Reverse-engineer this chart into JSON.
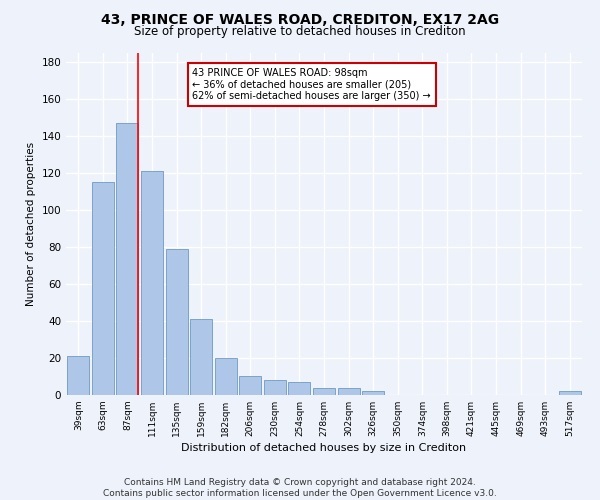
{
  "title": "43, PRINCE OF WALES ROAD, CREDITON, EX17 2AG",
  "subtitle": "Size of property relative to detached houses in Crediton",
  "xlabel": "Distribution of detached houses by size in Crediton",
  "ylabel": "Number of detached properties",
  "footer_line1": "Contains HM Land Registry data © Crown copyright and database right 2024.",
  "footer_line2": "Contains public sector information licensed under the Open Government Licence v3.0.",
  "bar_labels": [
    "39sqm",
    "63sqm",
    "87sqm",
    "111sqm",
    "135sqm",
    "159sqm",
    "182sqm",
    "206sqm",
    "230sqm",
    "254sqm",
    "278sqm",
    "302sqm",
    "326sqm",
    "350sqm",
    "374sqm",
    "398sqm",
    "421sqm",
    "445sqm",
    "469sqm",
    "493sqm",
    "517sqm"
  ],
  "bar_values": [
    21,
    115,
    147,
    121,
    79,
    41,
    20,
    10,
    8,
    7,
    4,
    4,
    2,
    0,
    0,
    0,
    0,
    0,
    0,
    0,
    2
  ],
  "bar_color": "#aec6e8",
  "bar_edge_color": "#5b8db8",
  "red_line_label": "43 PRINCE OF WALES ROAD: 98sqm",
  "annotation_line2": "← 36% of detached houses are smaller (205)",
  "annotation_line3": "62% of semi-detached houses are larger (350) →",
  "ylim": [
    0,
    185
  ],
  "yticks": [
    0,
    20,
    40,
    60,
    80,
    100,
    120,
    140,
    160,
    180
  ],
  "background_color": "#eef2fb",
  "grid_color": "#ffffff",
  "annotation_box_color": "#ffffff",
  "annotation_box_edge": "#cc0000"
}
